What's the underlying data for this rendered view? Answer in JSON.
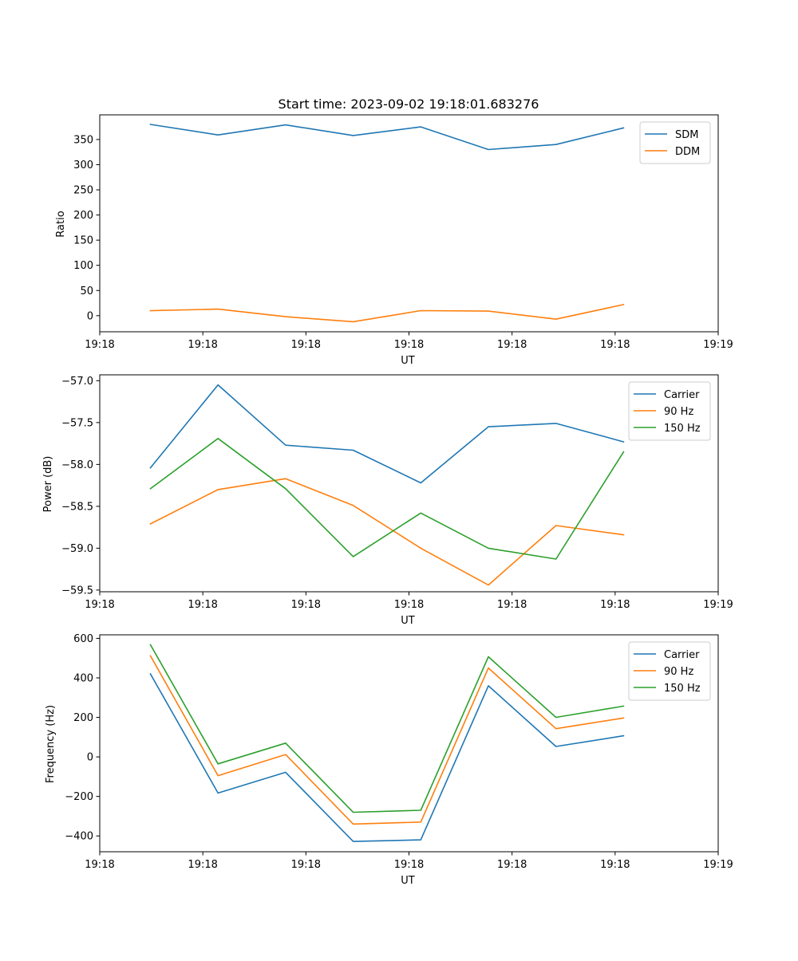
{
  "chart_data": [
    {
      "type": "line",
      "title": "Start time: 2023-09-02 19:18:01.683276",
      "xlabel": "UT",
      "ylabel": "Ratio",
      "x": [
        0,
        1,
        2,
        3,
        4,
        5,
        6,
        7
      ],
      "xlim": [
        -0.75,
        8.4
      ],
      "x_ticks": [
        -0.75,
        0.775,
        2.3,
        3.825,
        5.35,
        6.875,
        8.4
      ],
      "x_tick_labels": [
        "19:18",
        "19:18",
        "19:18",
        "19:18",
        "19:18",
        "19:18",
        "19:19"
      ],
      "ylim": [
        -32,
        399
      ],
      "y_ticks": [
        0,
        50,
        100,
        150,
        200,
        250,
        300,
        350
      ],
      "y_tick_labels": [
        "0",
        "50",
        "100",
        "150",
        "200",
        "250",
        "300",
        "350"
      ],
      "legend_position": "upper-right",
      "series": [
        {
          "name": "SDM",
          "color": "#1f77b4",
          "values": [
            380,
            359,
            379,
            358,
            375,
            330,
            340,
            373
          ]
        },
        {
          "name": "DDM",
          "color": "#ff7f0e",
          "values": [
            10,
            13,
            -2,
            -12,
            10,
            9,
            -7,
            22
          ]
        }
      ]
    },
    {
      "type": "line",
      "title": "",
      "xlabel": "UT",
      "ylabel": "Power (dB)",
      "x": [
        0,
        1,
        2,
        3,
        4,
        5,
        6,
        7
      ],
      "xlim": [
        -0.75,
        8.4
      ],
      "x_ticks": [
        -0.75,
        0.775,
        2.3,
        3.825,
        5.35,
        6.875,
        8.4
      ],
      "x_tick_labels": [
        "19:18",
        "19:18",
        "19:18",
        "19:18",
        "19:18",
        "19:18",
        "19:19"
      ],
      "ylim": [
        -59.52,
        -56.93
      ],
      "y_ticks": [
        -59.5,
        -59.0,
        -58.5,
        -58.0,
        -57.5,
        -57.0
      ],
      "y_tick_labels": [
        "−59.5",
        "−59.0",
        "−58.5",
        "−58.0",
        "−57.5",
        "−57.0"
      ],
      "legend_position": "upper-right",
      "series": [
        {
          "name": "Carrier",
          "color": "#1f77b4",
          "values": [
            -58.04,
            -57.05,
            -57.77,
            -57.83,
            -58.22,
            -57.55,
            -57.51,
            -57.73
          ]
        },
        {
          "name": "90 Hz",
          "color": "#ff7f0e",
          "values": [
            -58.71,
            -58.3,
            -58.17,
            -58.49,
            -59.0,
            -59.44,
            -58.73,
            -58.84
          ]
        },
        {
          "name": "150 Hz",
          "color": "#2ca02c",
          "values": [
            -58.29,
            -57.69,
            -58.29,
            -59.1,
            -58.58,
            -59.0,
            -59.13,
            -57.85
          ]
        }
      ]
    },
    {
      "type": "line",
      "title": "",
      "xlabel": "UT",
      "ylabel": "Frequency (Hz)",
      "x": [
        0,
        1,
        2,
        3,
        4,
        5,
        6,
        7
      ],
      "xlim": [
        -0.75,
        8.4
      ],
      "x_ticks": [
        -0.75,
        0.775,
        2.3,
        3.825,
        5.35,
        6.875,
        8.4
      ],
      "x_tick_labels": [
        "19:18",
        "19:18",
        "19:18",
        "19:18",
        "19:18",
        "19:18",
        "19:19"
      ],
      "ylim": [
        -480,
        618
      ],
      "y_ticks": [
        -400,
        -200,
        0,
        200,
        400,
        600
      ],
      "y_tick_labels": [
        "−400",
        "−200",
        "0",
        "200",
        "400",
        "600"
      ],
      "legend_position": "upper-right",
      "series": [
        {
          "name": "Carrier",
          "color": "#1f77b4",
          "values": [
            420,
            -183,
            -78,
            -428,
            -420,
            360,
            53,
            107
          ]
        },
        {
          "name": "90 Hz",
          "color": "#ff7f0e",
          "values": [
            512,
            -95,
            12,
            -340,
            -330,
            450,
            143,
            197
          ]
        },
        {
          "name": "150 Hz",
          "color": "#2ca02c",
          "values": [
            568,
            -35,
            70,
            -280,
            -270,
            507,
            200,
            257
          ]
        }
      ]
    }
  ]
}
